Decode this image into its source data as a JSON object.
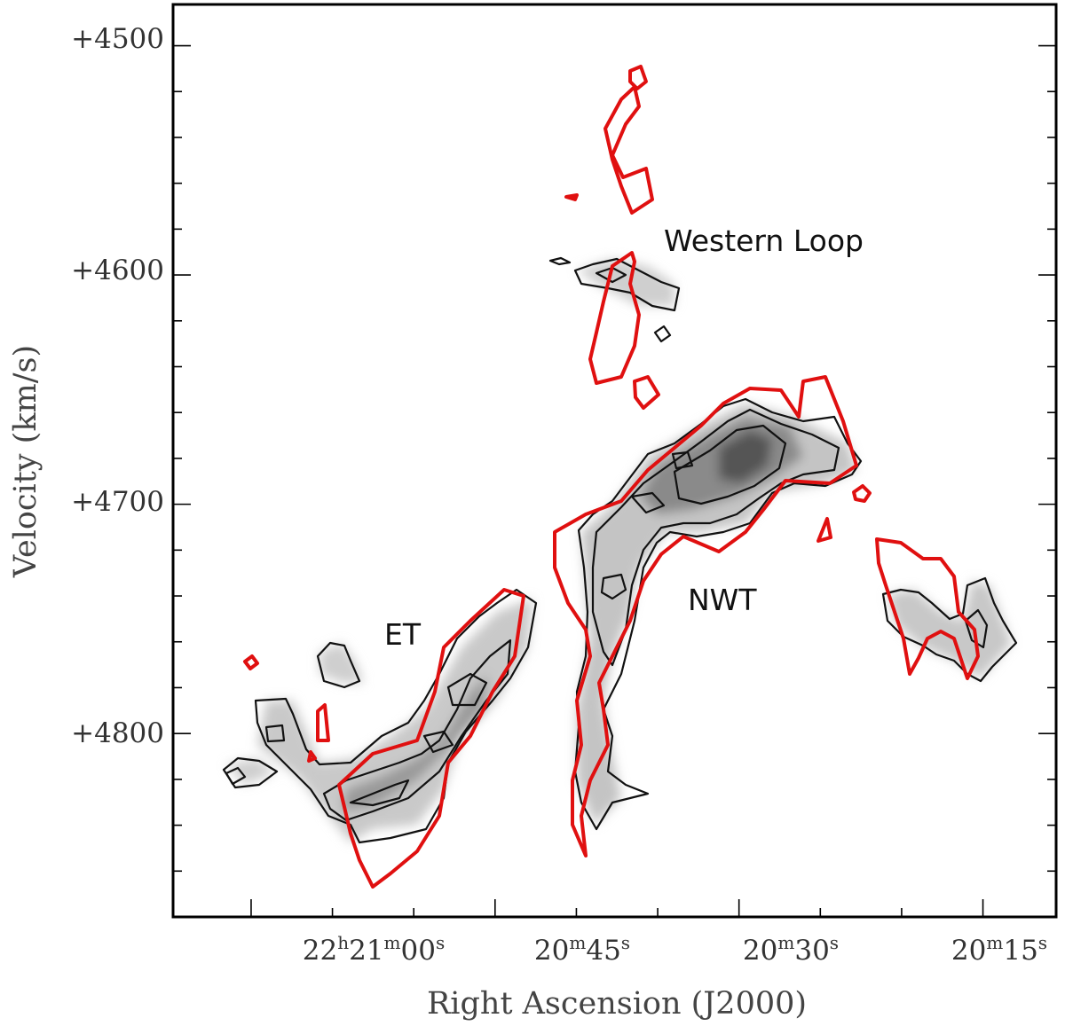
{
  "chart_data": {
    "type": "contour",
    "xlabel": "Right Ascension (J2000)",
    "ylabel": "Velocity (km/s)",
    "y_ticks": [
      "+4500",
      "+4600",
      "+4700",
      "+4800"
    ],
    "y_tick_values": [
      4500,
      4600,
      4700,
      4800
    ],
    "ylim": [
      4482,
      4880
    ],
    "x_ticks": [
      {
        "main": "22",
        "h": "h",
        "mid": "21",
        "m": "m",
        "sec": "00",
        "s": "s",
        "value_s": 0
      },
      {
        "main": "",
        "h": "",
        "mid": "20",
        "m": "m",
        "sec": "45",
        "s": "s",
        "value_s": -15
      },
      {
        "main": "",
        "h": "",
        "mid": "20",
        "m": "m",
        "sec": "30",
        "s": "s",
        "value_s": -30
      },
      {
        "main": "",
        "h": "",
        "mid": "20",
        "m": "m",
        "sec": "15",
        "s": "s",
        "value_s": -45
      }
    ],
    "xlim_seconds_from_22h21m00s": [
      4.8,
      -49.5
    ],
    "annotations": [
      {
        "text": "Western Loop",
        "ra_s": -34.0,
        "vel": 4587
      },
      {
        "text": "NWT",
        "ra_s": -39.6,
        "vel": 4743
      },
      {
        "text": "ET",
        "ra_s": -1.8,
        "vel": 4762
      }
    ],
    "layers": [
      {
        "name": "grey",
        "color": "#000000"
      },
      {
        "name": "red",
        "color": "#e01010"
      }
    ],
    "grid": false
  }
}
